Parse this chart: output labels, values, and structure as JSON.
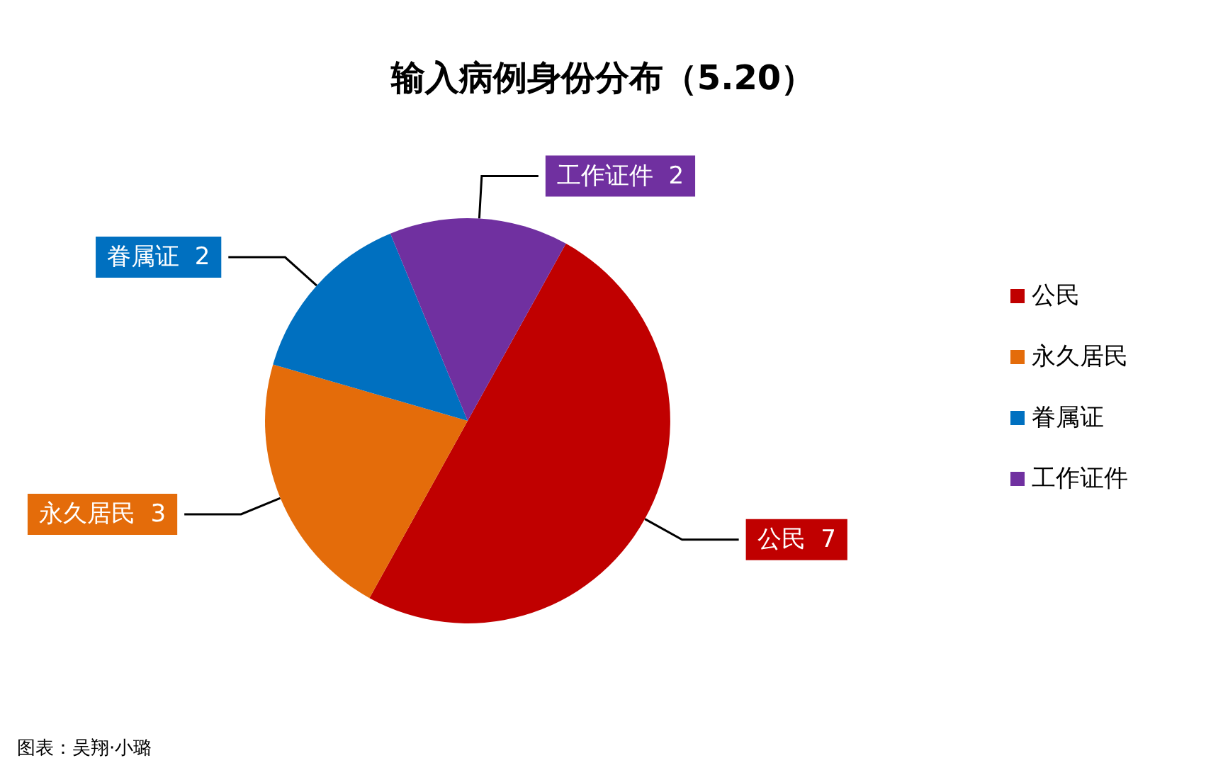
{
  "chart_data": {
    "type": "pie",
    "title": "输入病例身份分布（5.20）",
    "categories": [
      "公民",
      "永久居民",
      "眷属证",
      "工作证件"
    ],
    "values": [
      7,
      3,
      2,
      2
    ],
    "colors": [
      "#c00000",
      "#e46c0a",
      "#0070c0",
      "#7030a0"
    ],
    "data_labels": true,
    "legend": "right",
    "annotations": [
      "图表：吴翔·小璐"
    ]
  }
}
